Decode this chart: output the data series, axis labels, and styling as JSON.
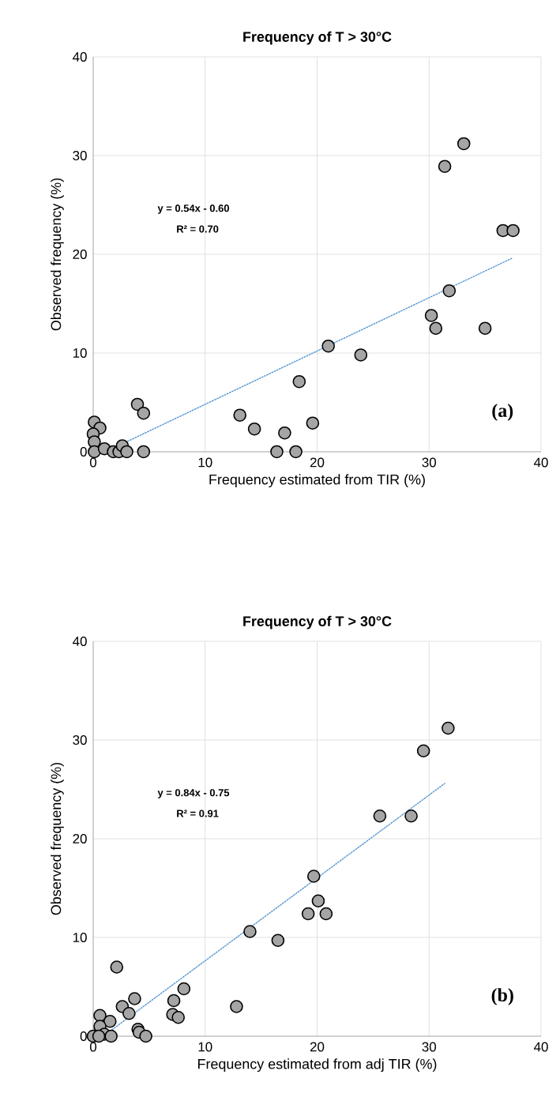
{
  "chart_data": [
    {
      "type": "scatter",
      "title": "Frequency of T > 30°C",
      "xlabel": "Frequency estimated from TIR (%)",
      "ylabel": "Observed frequency (%)",
      "xlim": [
        0,
        40
      ],
      "ylim": [
        0,
        40
      ],
      "xticks": [
        0,
        10,
        20,
        30,
        40
      ],
      "yticks": [
        0,
        10,
        20,
        30,
        40
      ],
      "grid": true,
      "marker": "circle",
      "annotations": [
        "y = 0.54x - 0.60",
        "R² = 0.70",
        "(a)"
      ],
      "series": [
        {
          "color": "#a5a5a5",
          "x": [
            0.1,
            0.6,
            0.0,
            0.1,
            0.1,
            1.0,
            1.8,
            2.3,
            2.6,
            3.0,
            3.95,
            4.5,
            4.5,
            13.1,
            14.4,
            16.4,
            17.1,
            18.1,
            18.4,
            19.6,
            21.0,
            23.9,
            30.2,
            30.6,
            31.8,
            35.0,
            31.4,
            33.1,
            36.6,
            37.5
          ],
          "values": [
            3.0,
            2.4,
            1.8,
            1.0,
            0,
            0.3,
            0,
            0,
            0.6,
            0,
            4.8,
            3.9,
            0,
            3.7,
            2.3,
            0,
            1.9,
            0,
            7.1,
            2.9,
            10.7,
            9.8,
            13.8,
            12.5,
            16.3,
            12.5,
            28.9,
            31.2,
            22.4,
            22.4
          ]
        },
        {
          "type": "line",
          "color": "#5b9bd5",
          "line_style": "dotted",
          "marker": "none",
          "x": [
            1.3,
            37.4
          ],
          "values": [
            0.1,
            19.6
          ]
        }
      ]
    },
    {
      "type": "scatter",
      "title": "Frequency of T > 30°C",
      "xlabel": "Frequency estimated from adj TIR (%)",
      "ylabel": "Observed frequency (%)",
      "xlim": [
        0,
        40
      ],
      "ylim": [
        0,
        40
      ],
      "xticks": [
        0,
        10,
        20,
        30,
        40
      ],
      "yticks": [
        0,
        10,
        20,
        30,
        40
      ],
      "grid": true,
      "marker": "circle",
      "annotations": [
        "y = 0.84x - 0.75",
        "R² = 0.91",
        "(b)"
      ],
      "series": [
        {
          "color": "#a5a5a5",
          "x": [
            2.1,
            14.0,
            16.5,
            12.8,
            8.1,
            7.2,
            7.1,
            7.6,
            3.7,
            2.6,
            3.2,
            0.6,
            1.5,
            0.6,
            4.0,
            4.1,
            4.7,
            0.0,
            1.0,
            1.6,
            0.5,
            31.7,
            29.5,
            25.6,
            28.4,
            19.7,
            20.1,
            19.2,
            20.8
          ],
          "values": [
            7.0,
            10.6,
            9.7,
            3.0,
            4.8,
            3.6,
            2.2,
            1.9,
            3.8,
            3.0,
            2.3,
            2.1,
            1.5,
            1.0,
            0.7,
            0.4,
            0,
            0,
            0.2,
            0,
            0,
            31.2,
            28.9,
            22.3,
            22.3,
            16.2,
            13.7,
            12.4,
            12.4
          ]
        },
        {
          "type": "line",
          "color": "#5b9bd5",
          "line_style": "dotted",
          "marker": "none",
          "x": [
            0.9,
            31.4
          ],
          "values": [
            0.0,
            25.6
          ]
        }
      ]
    }
  ]
}
